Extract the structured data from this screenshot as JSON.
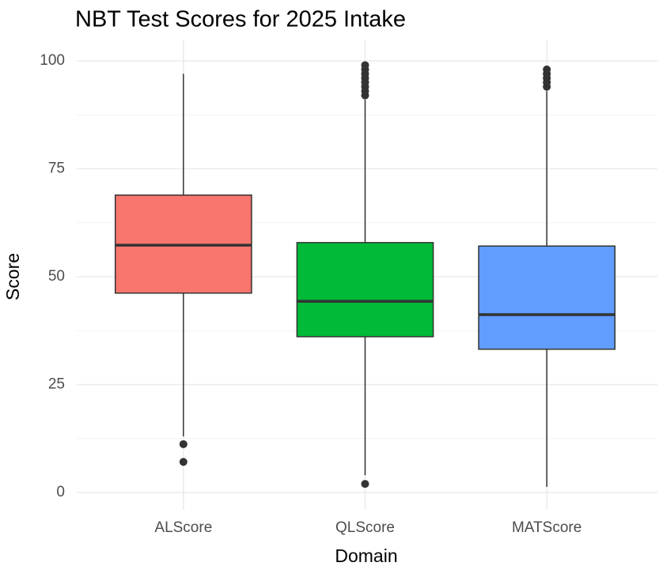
{
  "chart_data": {
    "type": "box",
    "title": "NBT Test Scores for 2025 Intake",
    "x_label": "Domain",
    "y_label": "Score",
    "categories": [
      "ALScore",
      "QLScore",
      "MATScore"
    ],
    "series": [
      {
        "name": "ALScore",
        "color": "#F8766D",
        "whisker_low": 13,
        "q1": 46.2,
        "median": 57.3,
        "q3": 68.9,
        "whisker_high": 97,
        "outliers": [
          11.2,
          7.1
        ]
      },
      {
        "name": "QLScore",
        "color": "#00BA38",
        "whisker_low": 4,
        "q1": 36.1,
        "median": 44.3,
        "q3": 57.9,
        "whisker_high": 91,
        "outliers": [
          2,
          92,
          93,
          94,
          95,
          96,
          97,
          98,
          99
        ]
      },
      {
        "name": "MATScore",
        "color": "#619CFF",
        "whisker_low": 1.3,
        "q1": 33.2,
        "median": 41.2,
        "q3": 57.1,
        "whisker_high": 93,
        "outliers": [
          94,
          95,
          96,
          97,
          98
        ]
      }
    ],
    "ylim": [
      0,
      100
    ],
    "yticks": [
      0,
      25,
      50,
      75,
      100
    ],
    "grid": true
  }
}
